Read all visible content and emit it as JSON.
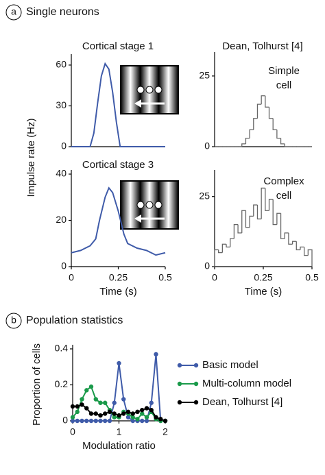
{
  "panels": [
    {
      "letter": "a",
      "title": "Single neurons"
    },
    {
      "letter": "b",
      "title": "Population statistics"
    }
  ],
  "chart_data": [
    {
      "type": "line",
      "title": "Cortical stage 1",
      "ylabel": "Impulse rate (Hz)",
      "color": "#3f5ba9",
      "x": [
        0,
        0.05,
        0.1,
        0.12,
        0.14,
        0.16,
        0.18,
        0.2,
        0.22,
        0.24,
        0.26,
        0.3,
        0.35,
        0.4,
        0.45,
        0.5
      ],
      "values": [
        0,
        0,
        0,
        10,
        32,
        52,
        61,
        57,
        40,
        18,
        0,
        0,
        0,
        0,
        0,
        0
      ],
      "xlim": [
        0,
        0.5
      ],
      "ylim": [
        0,
        65
      ],
      "yticks": [
        0,
        30,
        60
      ]
    },
    {
      "type": "line",
      "title": "Cortical stage 3",
      "xlabel": "Time (s)",
      "color": "#3f5ba9",
      "x": [
        0,
        0.05,
        0.1,
        0.13,
        0.15,
        0.18,
        0.2,
        0.22,
        0.25,
        0.28,
        0.3,
        0.35,
        0.4,
        0.45,
        0.5
      ],
      "values": [
        6,
        7,
        9,
        12,
        20,
        30,
        34,
        32,
        24,
        14,
        10,
        8,
        7,
        5,
        6
      ],
      "xlim": [
        0,
        0.5
      ],
      "ylim": [
        0,
        40
      ],
      "xticks": [
        0,
        0.25,
        0.5
      ],
      "yticks": [
        0,
        20,
        40
      ]
    },
    {
      "type": "histogram",
      "title": "Dean, Tolhurst [4]",
      "annotation": [
        "Simple",
        "cell"
      ],
      "color": "#666666",
      "bins": [
        0,
        0.02,
        0.04,
        0.06,
        0.08,
        0.1,
        0.12,
        0.14,
        0.16,
        0.18,
        0.2,
        0.22,
        0.24,
        0.26,
        0.28,
        0.3,
        0.32,
        0.34,
        0.36,
        0.38,
        0.4,
        0.42,
        0.44,
        0.46,
        0.48,
        0.5
      ],
      "values": [
        0,
        0,
        0,
        0,
        0,
        0,
        0,
        1,
        3,
        6,
        10,
        15,
        18,
        14,
        10,
        6,
        3,
        1,
        0,
        0,
        0,
        0,
        0,
        0,
        0
      ],
      "xlim": [
        0,
        0.5
      ],
      "ylim": [
        0,
        32
      ],
      "yticks": [
        0,
        25
      ]
    },
    {
      "type": "histogram",
      "annotation": [
        "Complex",
        "cell"
      ],
      "xlabel": "Time (s)",
      "color": "#666666",
      "bins": [
        0,
        0.02,
        0.04,
        0.06,
        0.08,
        0.1,
        0.12,
        0.14,
        0.16,
        0.18,
        0.2,
        0.22,
        0.24,
        0.26,
        0.28,
        0.3,
        0.32,
        0.34,
        0.36,
        0.38,
        0.4,
        0.42,
        0.44,
        0.46,
        0.48,
        0.5
      ],
      "values": [
        6,
        5,
        8,
        7,
        10,
        15,
        12,
        20,
        14,
        18,
        22,
        17,
        28,
        20,
        24,
        15,
        19,
        10,
        12,
        8,
        9,
        6,
        7,
        4,
        6
      ],
      "xlim": [
        0,
        0.5
      ],
      "ylim": [
        0,
        33
      ],
      "xticks": [
        0,
        0.25,
        0.5
      ],
      "yticks": [
        0,
        25
      ]
    },
    {
      "type": "line",
      "markers": true,
      "legend": "right",
      "xlabel": "Modulation ratio",
      "ylabel": "Proportion of cells",
      "x": [
        0,
        0.1,
        0.2,
        0.3,
        0.4,
        0.5,
        0.6,
        0.7,
        0.8,
        0.9,
        1.0,
        1.1,
        1.2,
        1.3,
        1.4,
        1.5,
        1.6,
        1.7,
        1.8,
        1.9,
        2.0
      ],
      "series": [
        {
          "name": "Basic model",
          "color": "#3f5ba9",
          "values": [
            0,
            0,
            0,
            0,
            0,
            0,
            0,
            0,
            0,
            0.1,
            0.32,
            0.12,
            0.02,
            0,
            0,
            0,
            0,
            0.1,
            0.37,
            0,
            0
          ]
        },
        {
          "name": "Multi-column model",
          "color": "#1a9a4a",
          "values": [
            0.02,
            0.05,
            0.12,
            0.17,
            0.19,
            0.12,
            0.1,
            0.1,
            0.06,
            0.02,
            0.02,
            0.05,
            0.04,
            0.02,
            0.01,
            0.04,
            0.02,
            0.05,
            0.01,
            0,
            0
          ]
        },
        {
          "name": "Dean, Tolhurst [4]",
          "color": "#000000",
          "values": [
            0.08,
            0.08,
            0.09,
            0.07,
            0.04,
            0.04,
            0.03,
            0.04,
            0.05,
            0.04,
            0.03,
            0.04,
            0.05,
            0.04,
            0.05,
            0.06,
            0.07,
            0.06,
            0.02,
            0.01,
            0
          ]
        }
      ],
      "xlim": [
        0,
        2
      ],
      "ylim": [
        0,
        0.4
      ],
      "xticks": [
        0,
        1,
        2
      ],
      "yticks": [
        0,
        0.2,
        0.4
      ]
    }
  ]
}
